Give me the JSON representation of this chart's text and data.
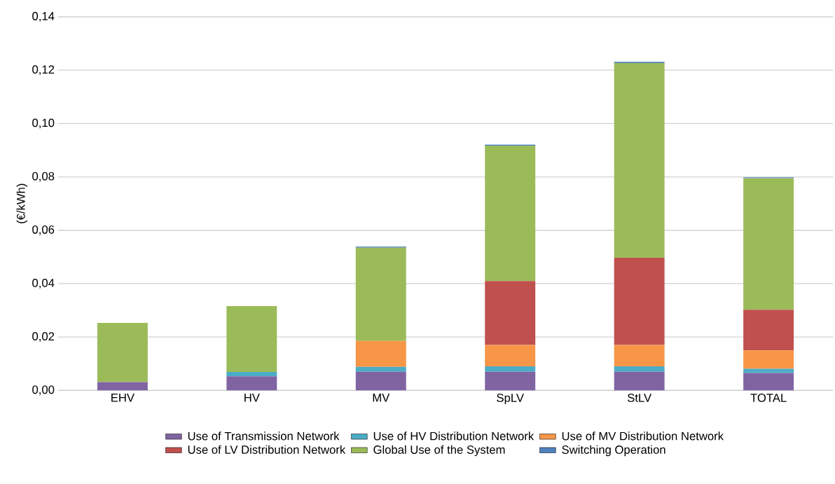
{
  "chart_data": {
    "type": "bar",
    "stacked": true,
    "ylabel": "(€/kWh)",
    "categories": [
      "EHV",
      "HV",
      "MV",
      "SpLV",
      "StLV",
      "TOTAL"
    ],
    "series": [
      {
        "name": "Use of Transmission Network",
        "color": "#8064a2",
        "values": [
          0.0031,
          0.0053,
          0.007,
          0.007,
          0.007,
          0.0065
        ]
      },
      {
        "name": "Use of HV Distribution Network",
        "color": "#4bacc6",
        "values": [
          0,
          0.0016,
          0.0018,
          0.002,
          0.002,
          0.0016
        ]
      },
      {
        "name": "Use of MV Distribution Network",
        "color": "#f79646",
        "values": [
          0,
          0,
          0.0097,
          0.008,
          0.008,
          0.0069
        ]
      },
      {
        "name": "Use of LV Distribution Network",
        "color": "#c0504d",
        "values": [
          0,
          0,
          0,
          0.024,
          0.0327,
          0.0152
        ]
      },
      {
        "name": "Global Use of the System",
        "color": "#9bbb59",
        "values": [
          0.0222,
          0.0247,
          0.035,
          0.0507,
          0.073,
          0.0493
        ]
      },
      {
        "name": "Switching Operation",
        "color": "#4f81bd",
        "values": [
          0,
          0,
          0.0004,
          0.0004,
          0.0004,
          0.0003
        ]
      }
    ],
    "ylim": [
      0,
      0.14
    ],
    "yticks": [
      {
        "value": 0,
        "label": "0,00"
      },
      {
        "value": 0.02,
        "label": "0,02"
      },
      {
        "value": 0.04,
        "label": "0,04"
      },
      {
        "value": 0.06,
        "label": "0,06"
      },
      {
        "value": 0.08,
        "label": "0,08"
      },
      {
        "value": 0.1,
        "label": "0,10"
      },
      {
        "value": 0.12,
        "label": "0,12"
      },
      {
        "value": 0.14,
        "label": "0,14"
      }
    ],
    "grid": "y",
    "legend": "bottom"
  }
}
